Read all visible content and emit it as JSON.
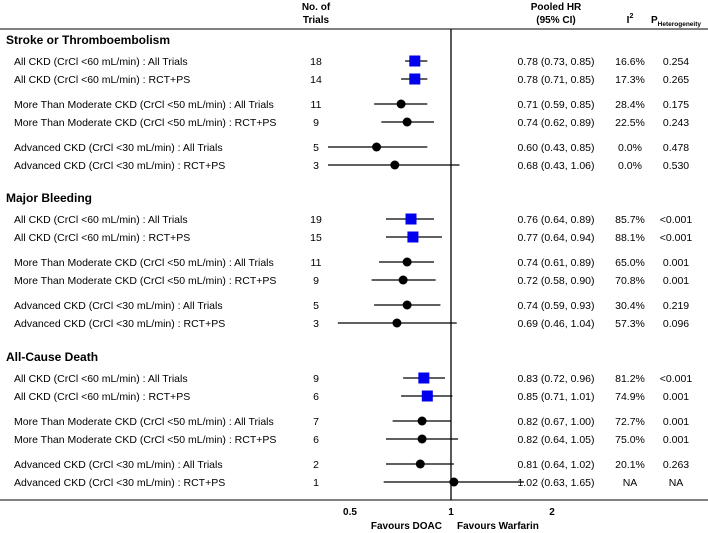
{
  "chart_data": {
    "type": "forest",
    "x_scale": "log",
    "xlim": [
      0.35,
      3.0
    ],
    "reference_line": 1,
    "x_ticks": [
      {
        "value": 0.5,
        "label": "0.5"
      },
      {
        "value": 1,
        "label": "1"
      },
      {
        "value": 2,
        "label": "2"
      }
    ],
    "favours_left": "Favours DOAC",
    "favours_right": "Favours Warfarin",
    "headers": {
      "trials_line1": "No. of",
      "trials_line2": "Trials",
      "hr_line1": "Pooled HR",
      "hr_line2": "(95% CI)",
      "i2_base": "I",
      "i2_sup": "2",
      "p_base": "P",
      "p_sub": "Heterogeneity"
    },
    "sections": [
      {
        "title": "Stroke or Thromboembolism",
        "rows": [
          {
            "label": "All CKD (CrCl <60 mL/min) : All Trials",
            "n": "18",
            "hr": 0.78,
            "lo": 0.73,
            "hi": 0.85,
            "hr_text": "0.78 (0.73, 0.85)",
            "i2": "16.6%",
            "p": "0.254",
            "marker": "square"
          },
          {
            "label": "All CKD (CrCl <60 mL/min) : RCT+PS",
            "n": "14",
            "hr": 0.78,
            "lo": 0.71,
            "hi": 0.85,
            "hr_text": "0.78 (0.71, 0.85)",
            "i2": "17.3%",
            "p": "0.265",
            "marker": "square"
          },
          {
            "label": "More Than Moderate CKD (CrCl <50 mL/min) : All Trials",
            "n": "11",
            "hr": 0.71,
            "lo": 0.59,
            "hi": 0.85,
            "hr_text": "0.71 (0.59, 0.85)",
            "i2": "28.4%",
            "p": "0.175",
            "marker": "circle"
          },
          {
            "label": "More Than Moderate CKD (CrCl <50 mL/min) : RCT+PS",
            "n": "9",
            "hr": 0.74,
            "lo": 0.62,
            "hi": 0.89,
            "hr_text": "0.74 (0.62, 0.89)",
            "i2": "22.5%",
            "p": "0.243",
            "marker": "circle"
          },
          {
            "label": "Advanced CKD (CrCl <30 mL/min) : All Trials",
            "n": "5",
            "hr": 0.6,
            "lo": 0.43,
            "hi": 0.85,
            "hr_text": "0.60 (0.43, 0.85)",
            "i2": "0.0%",
            "p": "0.478",
            "marker": "circle"
          },
          {
            "label": "Advanced CKD (CrCl <30 mL/min) : RCT+PS",
            "n": "3",
            "hr": 0.68,
            "lo": 0.43,
            "hi": 1.06,
            "hr_text": "0.68 (0.43, 1.06)",
            "i2": "0.0%",
            "p": "0.530",
            "marker": "circle"
          }
        ]
      },
      {
        "title": "Major Bleeding",
        "rows": [
          {
            "label": "All CKD (CrCl <60 mL/min) : All Trials",
            "n": "19",
            "hr": 0.76,
            "lo": 0.64,
            "hi": 0.89,
            "hr_text": "0.76 (0.64, 0.89)",
            "i2": "85.7%",
            "p": "<0.001",
            "marker": "square"
          },
          {
            "label": "All CKD (CrCl <60 mL/min) : RCT+PS",
            "n": "15",
            "hr": 0.77,
            "lo": 0.64,
            "hi": 0.94,
            "hr_text": "0.77 (0.64, 0.94)",
            "i2": "88.1%",
            "p": "<0.001",
            "marker": "square"
          },
          {
            "label": "More Than Moderate CKD (CrCl <50 mL/min) : All Trials",
            "n": "11",
            "hr": 0.74,
            "lo": 0.61,
            "hi": 0.89,
            "hr_text": "0.74 (0.61, 0.89)",
            "i2": "65.0%",
            "p": "0.001",
            "marker": "circle"
          },
          {
            "label": "More Than Moderate CKD (CrCl <50 mL/min) : RCT+PS",
            "n": "9",
            "hr": 0.72,
            "lo": 0.58,
            "hi": 0.9,
            "hr_text": "0.72 (0.58, 0.90)",
            "i2": "70.8%",
            "p": "0.001",
            "marker": "circle"
          },
          {
            "label": "Advanced CKD (CrCl <30 mL/min) : All Trials",
            "n": "5",
            "hr": 0.74,
            "lo": 0.59,
            "hi": 0.93,
            "hr_text": "0.74 (0.59, 0.93)",
            "i2": "30.4%",
            "p": "0.219",
            "marker": "circle"
          },
          {
            "label": "Advanced CKD (CrCl <30 mL/min) : RCT+PS",
            "n": "3",
            "hr": 0.69,
            "lo": 0.46,
            "hi": 1.04,
            "hr_text": "0.69 (0.46, 1.04)",
            "i2": "57.3%",
            "p": "0.096",
            "marker": "circle"
          }
        ]
      },
      {
        "title": "All-Cause Death",
        "rows": [
          {
            "label": "All CKD (CrCl <60 mL/min) : All Trials",
            "n": "9",
            "hr": 0.83,
            "lo": 0.72,
            "hi": 0.96,
            "hr_text": "0.83 (0.72, 0.96)",
            "i2": "81.2%",
            "p": "<0.001",
            "marker": "square"
          },
          {
            "label": "All CKD (CrCl <60 mL/min) : RCT+PS",
            "n": "6",
            "hr": 0.85,
            "lo": 0.71,
            "hi": 1.01,
            "hr_text": "0.85 (0.71, 1.01)",
            "i2": "74.9%",
            "p": "0.001",
            "marker": "square"
          },
          {
            "label": "More Than Moderate CKD (CrCl <50 mL/min) : All Trials",
            "n": "7",
            "hr": 0.82,
            "lo": 0.67,
            "hi": 1.0,
            "hr_text": "0.82 (0.67, 1.00)",
            "i2": "72.7%",
            "p": "0.001",
            "marker": "circle"
          },
          {
            "label": "More Than Moderate CKD (CrCl <50 mL/min) : RCT+PS",
            "n": "6",
            "hr": 0.82,
            "lo": 0.64,
            "hi": 1.05,
            "hr_text": "0.82 (0.64, 1.05)",
            "i2": "75.0%",
            "p": "0.001",
            "marker": "circle"
          },
          {
            "label": "Advanced CKD (CrCl <30 mL/min) : All Trials",
            "n": "2",
            "hr": 0.81,
            "lo": 0.64,
            "hi": 1.02,
            "hr_text": "0.81 (0.64, 1.02)",
            "i2": "20.1%",
            "p": "0.263",
            "marker": "circle"
          },
          {
            "label": "Advanced CKD (CrCl <30 mL/min) : RCT+PS",
            "n": "1",
            "hr": 1.02,
            "lo": 0.63,
            "hi": 1.65,
            "hr_text": "1.02 (0.63, 1.65)",
            "i2": "NA",
            "p": "NA",
            "marker": "circle"
          }
        ]
      }
    ]
  },
  "colors": {
    "square_marker": "#0000ee",
    "circle_marker": "#000000",
    "line": "#000000"
  }
}
